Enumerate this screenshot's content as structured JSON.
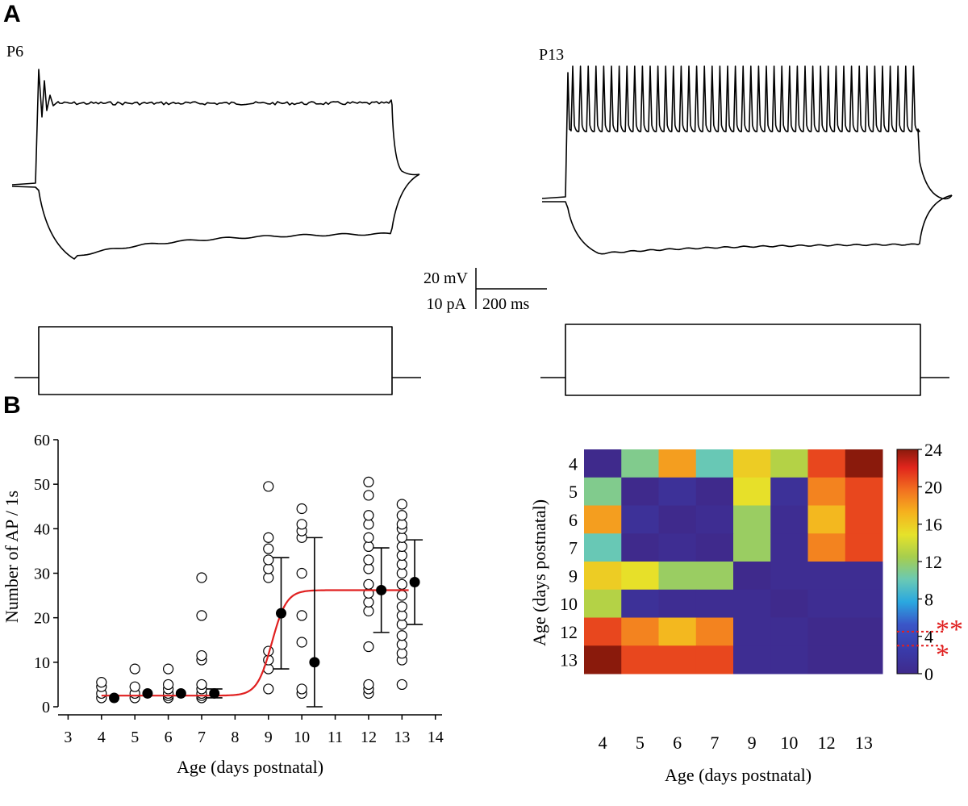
{
  "panels": {
    "a_label": "A",
    "b_label": "B"
  },
  "traces": {
    "left_label": "P6",
    "right_label": "P13",
    "scale_voltage": "20 mV",
    "scale_current": "10 pA",
    "scale_time": "200 ms"
  },
  "colors": {
    "fit_line": "#e02020",
    "markers": "#000000",
    "significance": "#e02020"
  },
  "chart_data": [
    {
      "type": "scatter",
      "title": "",
      "xlabel": "Age (days postnatal)",
      "ylabel": "Number of AP / 1s",
      "xlim": [
        2.7,
        14.2
      ],
      "ylim": [
        0,
        60
      ],
      "xticks": [
        "3",
        "4",
        "5",
        "6",
        "7",
        "8",
        "9",
        "10",
        "11",
        "12",
        "13",
        "14"
      ],
      "yticks": [
        "0",
        "10",
        "20",
        "30",
        "40",
        "50",
        "60"
      ],
      "series": [
        {
          "name": "individual cells",
          "style": "open-circle",
          "points": [
            {
              "x": 4,
              "y": [
                2,
                3,
                4.5,
                5.5
              ]
            },
            {
              "x": 5,
              "y": [
                2,
                3,
                4.5,
                8.5
              ]
            },
            {
              "x": 6,
              "y": [
                2,
                2.5,
                3,
                4,
                5,
                8.5
              ]
            },
            {
              "x": 7,
              "y": [
                2,
                2.5,
                3,
                4,
                5,
                10.5,
                11.5,
                20.5,
                29
              ]
            },
            {
              "x": 9,
              "y": [
                4,
                8.5,
                10.5,
                12.5,
                29,
                31,
                33,
                35.5,
                38,
                49.5
              ]
            },
            {
              "x": 10,
              "y": [
                3,
                4,
                14.5,
                20.5,
                30,
                38,
                39.5,
                41,
                44.5
              ]
            },
            {
              "x": 12,
              "y": [
                3,
                4,
                5,
                13.5,
                21.5,
                23.5,
                25.5,
                27.5,
                31,
                33,
                36,
                38,
                41,
                43,
                47.5,
                50.5
              ]
            },
            {
              "x": 13,
              "y": [
                5,
                10.5,
                12,
                14,
                16,
                18.5,
                20.5,
                22.5,
                25,
                27.5,
                30,
                32,
                34,
                36,
                38,
                40,
                41,
                43,
                45.5
              ]
            }
          ]
        },
        {
          "name": "mean ± SD",
          "style": "filled-circle",
          "x_offset": 0.38,
          "points": [
            {
              "x": 4,
              "y": 2,
              "err": 0
            },
            {
              "x": 5,
              "y": 3,
              "err": 0
            },
            {
              "x": 6,
              "y": 3,
              "err": 0
            },
            {
              "x": 7,
              "y": 3,
              "err": 1
            },
            {
              "x": 9,
              "y": 21,
              "err": 12.5
            },
            {
              "x": 10,
              "y": 10,
              "err": 28
            },
            {
              "x": 12,
              "y": 26.2,
              "err": 9.5
            },
            {
              "x": 13,
              "y": 28,
              "err": 9.5
            }
          ]
        },
        {
          "name": "sigmoid fit",
          "style": "line",
          "x_range": [
            4,
            13.2
          ],
          "bottom": 2.5,
          "top": 26.2,
          "x50": 9.1,
          "slope": 0.22
        }
      ]
    },
    {
      "type": "heatmap",
      "title": "",
      "xlabel": "Age (days postnatal)",
      "ylabel": "Age (days postnatal)",
      "x_categories": [
        "4",
        "5",
        "6",
        "7",
        "9",
        "10",
        "12",
        "13"
      ],
      "y_categories": [
        "4",
        "5",
        "6",
        "7",
        "9",
        "10",
        "12",
        "13"
      ],
      "values": [
        [
          0,
          11,
          18,
          10,
          16,
          13,
          21,
          24
        ],
        [
          11,
          0,
          1,
          0,
          15,
          1,
          19,
          21
        ],
        [
          18,
          1,
          0,
          0.5,
          12,
          0.5,
          17,
          21
        ],
        [
          10,
          0,
          0.5,
          0,
          12,
          0.5,
          19,
          21
        ],
        [
          16,
          15,
          12,
          12,
          0,
          0.5,
          0.5,
          0.5
        ],
        [
          13,
          1,
          0.5,
          0.5,
          0.5,
          0,
          0.5,
          0.5
        ],
        [
          21,
          19,
          17,
          19,
          0.5,
          0.5,
          0,
          0
        ],
        [
          24,
          21,
          21,
          21,
          0.5,
          0.5,
          0,
          0
        ]
      ],
      "colorbar": {
        "range": [
          0,
          24
        ],
        "ticks": [
          "0",
          "4",
          "8",
          "12",
          "16",
          "20",
          "24"
        ]
      },
      "significance": [
        {
          "label": "**",
          "threshold": 4.5
        },
        {
          "label": "*",
          "threshold": 3
        }
      ]
    }
  ]
}
